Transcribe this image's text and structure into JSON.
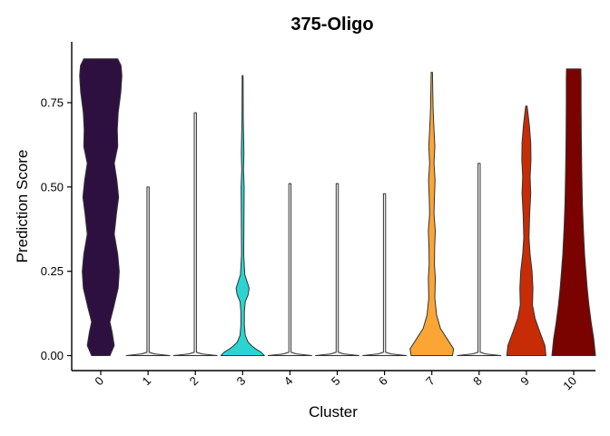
{
  "chart_data": {
    "type": "violin",
    "title": "375-Oligo",
    "xlabel": "Cluster",
    "ylabel": "Prediction Score",
    "ylim": [
      -0.04,
      0.93
    ],
    "yticks": [
      0.0,
      0.25,
      0.5,
      0.75
    ],
    "ytick_labels": [
      "0.00",
      "0.25",
      "0.50",
      "0.75"
    ],
    "categories": [
      "0",
      "1",
      "2",
      "3",
      "4",
      "5",
      "6",
      "7",
      "8",
      "9",
      "10"
    ],
    "legend": "none",
    "grid": false,
    "violins": [
      {
        "cluster": "0",
        "color": "#2d1040",
        "min": 0.0,
        "max": 0.88,
        "profile": [
          [
            0.0,
            0.42
          ],
          [
            0.03,
            0.62
          ],
          [
            0.07,
            0.52
          ],
          [
            0.1,
            0.42
          ],
          [
            0.14,
            0.58
          ],
          [
            0.2,
            0.8
          ],
          [
            0.25,
            0.85
          ],
          [
            0.3,
            0.78
          ],
          [
            0.36,
            0.62
          ],
          [
            0.42,
            0.72
          ],
          [
            0.47,
            0.82
          ],
          [
            0.52,
            0.74
          ],
          [
            0.57,
            0.62
          ],
          [
            0.62,
            0.78
          ],
          [
            0.67,
            0.76
          ],
          [
            0.72,
            0.8
          ],
          [
            0.78,
            0.92
          ],
          [
            0.83,
            0.97
          ],
          [
            0.86,
            0.93
          ],
          [
            0.88,
            0.78
          ]
        ]
      },
      {
        "cluster": "1",
        "color": "#e6e6e6",
        "min": 0.0,
        "max": 0.5,
        "profile": [
          [
            0.0,
            1.0
          ],
          [
            0.005,
            0.3
          ],
          [
            0.01,
            0.05
          ],
          [
            0.5,
            0.05
          ]
        ]
      },
      {
        "cluster": "2",
        "color": "#f0f0f0",
        "min": 0.0,
        "max": 0.72,
        "profile": [
          [
            0.0,
            1.0
          ],
          [
            0.005,
            0.3
          ],
          [
            0.01,
            0.05
          ],
          [
            0.72,
            0.05
          ]
        ]
      },
      {
        "cluster": "3",
        "color": "#2bd4d1",
        "min": 0.0,
        "max": 0.83,
        "profile": [
          [
            0.0,
            1.0
          ],
          [
            0.01,
            0.85
          ],
          [
            0.02,
            0.6
          ],
          [
            0.03,
            0.4
          ],
          [
            0.04,
            0.25
          ],
          [
            0.06,
            0.12
          ],
          [
            0.09,
            0.08
          ],
          [
            0.13,
            0.08
          ],
          [
            0.16,
            0.12
          ],
          [
            0.18,
            0.25
          ],
          [
            0.2,
            0.3
          ],
          [
            0.22,
            0.2
          ],
          [
            0.24,
            0.1
          ],
          [
            0.3,
            0.05
          ],
          [
            0.5,
            0.07
          ],
          [
            0.55,
            0.04
          ],
          [
            0.6,
            0.06
          ],
          [
            0.7,
            0.03
          ],
          [
            0.83,
            0.02
          ]
        ]
      },
      {
        "cluster": "4",
        "color": "#f0f0f0",
        "min": 0.0,
        "max": 0.51,
        "profile": [
          [
            0.0,
            1.0
          ],
          [
            0.005,
            0.3
          ],
          [
            0.01,
            0.05
          ],
          [
            0.51,
            0.05
          ]
        ]
      },
      {
        "cluster": "5",
        "color": "#f0f0f0",
        "min": 0.0,
        "max": 0.51,
        "profile": [
          [
            0.0,
            1.0
          ],
          [
            0.005,
            0.3
          ],
          [
            0.01,
            0.05
          ],
          [
            0.51,
            0.05
          ]
        ]
      },
      {
        "cluster": "6",
        "color": "#f0f0f0",
        "min": 0.0,
        "max": 0.48,
        "profile": [
          [
            0.0,
            1.0
          ],
          [
            0.005,
            0.3
          ],
          [
            0.01,
            0.05
          ],
          [
            0.48,
            0.05
          ]
        ]
      },
      {
        "cluster": "7",
        "color": "#fba535",
        "min": 0.0,
        "max": 0.84,
        "profile": [
          [
            0.0,
            0.95
          ],
          [
            0.02,
            1.0
          ],
          [
            0.05,
            0.7
          ],
          [
            0.08,
            0.4
          ],
          [
            0.12,
            0.22
          ],
          [
            0.17,
            0.14
          ],
          [
            0.23,
            0.16
          ],
          [
            0.27,
            0.12
          ],
          [
            0.32,
            0.13
          ],
          [
            0.37,
            0.16
          ],
          [
            0.42,
            0.1
          ],
          [
            0.47,
            0.12
          ],
          [
            0.52,
            0.15
          ],
          [
            0.57,
            0.1
          ],
          [
            0.62,
            0.14
          ],
          [
            0.67,
            0.1
          ],
          [
            0.73,
            0.06
          ],
          [
            0.8,
            0.04
          ],
          [
            0.84,
            0.03
          ]
        ]
      },
      {
        "cluster": "8",
        "color": "#f0f0f0",
        "min": 0.0,
        "max": 0.57,
        "profile": [
          [
            0.0,
            1.0
          ],
          [
            0.005,
            0.3
          ],
          [
            0.01,
            0.05
          ],
          [
            0.57,
            0.05
          ]
        ]
      },
      {
        "cluster": "9",
        "color": "#c72c07",
        "min": 0.0,
        "max": 0.74,
        "profile": [
          [
            0.0,
            0.9
          ],
          [
            0.03,
            0.85
          ],
          [
            0.07,
            0.62
          ],
          [
            0.11,
            0.4
          ],
          [
            0.15,
            0.28
          ],
          [
            0.2,
            0.3
          ],
          [
            0.25,
            0.26
          ],
          [
            0.3,
            0.17
          ],
          [
            0.35,
            0.12
          ],
          [
            0.42,
            0.15
          ],
          [
            0.48,
            0.2
          ],
          [
            0.53,
            0.17
          ],
          [
            0.58,
            0.21
          ],
          [
            0.63,
            0.2
          ],
          [
            0.68,
            0.14
          ],
          [
            0.72,
            0.07
          ],
          [
            0.74,
            0.03
          ]
        ]
      },
      {
        "cluster": "10",
        "color": "#7a0300",
        "min": 0.0,
        "max": 0.85,
        "profile": [
          [
            0.0,
            1.0
          ],
          [
            0.05,
            0.92
          ],
          [
            0.1,
            0.8
          ],
          [
            0.15,
            0.7
          ],
          [
            0.2,
            0.62
          ],
          [
            0.25,
            0.56
          ],
          [
            0.3,
            0.5
          ],
          [
            0.38,
            0.44
          ],
          [
            0.45,
            0.4
          ],
          [
            0.55,
            0.37
          ],
          [
            0.65,
            0.35
          ],
          [
            0.75,
            0.34
          ],
          [
            0.82,
            0.34
          ],
          [
            0.85,
            0.33
          ]
        ]
      }
    ]
  }
}
